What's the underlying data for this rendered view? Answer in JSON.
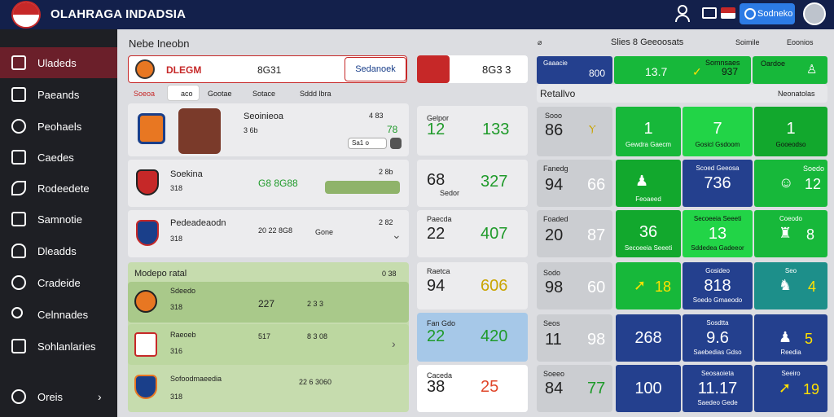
{
  "app": {
    "title": "OLAHRAGA INDADSIA",
    "action_button": "Sodneko"
  },
  "sidebar": {
    "items": [
      {
        "label": "Uladeds"
      },
      {
        "label": "Paeands"
      },
      {
        "label": "Peohaels"
      },
      {
        "label": "Caedes"
      },
      {
        "label": "Rodeedete"
      },
      {
        "label": "Samnotie"
      },
      {
        "label": "Dleadds"
      },
      {
        "label": "Cradeide"
      },
      {
        "label": "Celnnades"
      },
      {
        "label": "Sohlanlaries"
      }
    ],
    "footer": "Oreis"
  },
  "main": {
    "heading": "Nebe Ineobn",
    "match_bar": {
      "team": "DLEGM",
      "score": "8G31",
      "button": "Sedanoek"
    },
    "tabs": [
      "Soeoa",
      "aco",
      "Gootae",
      "Sotace",
      "Sddd lbra"
    ],
    "rows": [
      {
        "name": "Seoinieoa",
        "meta": "3 6b",
        "tag": "Sa1 o",
        "value": "78",
        "count": "4 83"
      },
      {
        "name": "Soekina",
        "meta": "318",
        "value": "G8 8G88",
        "count": "2 8b"
      },
      {
        "name": "Pedeadeaodn",
        "meta": "318",
        "value": "20 22 8G8",
        "tag": "Gone",
        "count": "2 82"
      }
    ],
    "group": {
      "title": "Modepo ratal",
      "count": "0 38",
      "rows": [
        {
          "name": "Sdeedo",
          "meta": "318",
          "value": "227",
          "tag": "2 3 3"
        },
        {
          "name": "Raeoeb",
          "meta": "316",
          "value": "517",
          "tag": "8 3 08"
        },
        {
          "name": "Sofoodmaeedia",
          "meta": "318",
          "value": "22 6 3060"
        }
      ]
    }
  },
  "scores": {
    "top": {
      "value": "8G3 3"
    },
    "cells": [
      {
        "left": "12",
        "right": "133",
        "label": "Gelpor"
      },
      {
        "left": "68",
        "right": "327",
        "label": "Sedor"
      },
      {
        "left": "22",
        "right": "407",
        "label": "Paecda"
      },
      {
        "left": "94",
        "right": "606",
        "label": "Raetca"
      },
      {
        "left": "22",
        "right": "420",
        "label": "Fan Gdo"
      },
      {
        "left": "38",
        "right": "25",
        "label": "Caceda"
      }
    ]
  },
  "right": {
    "header": {
      "title": "Slies 8 Geeoosats",
      "a": "Soimile",
      "b": "Eoonios"
    },
    "stats": [
      {
        "label": "Gaaacie",
        "value": "800"
      },
      {
        "label": "13.7"
      },
      {
        "label": "Somnsaes",
        "value": "937"
      },
      {
        "label": "Oardoe"
      }
    ],
    "section": "Retallvo",
    "section_right": "Neonatolas",
    "rows": [
      {
        "left": "86",
        "mid": "1",
        "mid2": "7",
        "right": "1",
        "lt": "Sooo",
        "mt": "Gewdra Gaecm",
        "mt2": "Gosicl Gsdoom",
        "rt": "Gooeodso"
      },
      {
        "left": "94",
        "l2": "66",
        "mid": "",
        "mid2": "736",
        "right": "12",
        "lt": "Fanedg",
        "mt": "Feoaeed",
        "mt2": "Scoed Geeosa",
        "rt": "Soedo"
      },
      {
        "left": "20",
        "l2": "87",
        "mid": "36",
        "mid2": "13",
        "right": "8",
        "lt": "Foaded",
        "mt": "Secoeeia Seeeti",
        "mt2": "Sddedea Gadeeor",
        "rt": "Coeodo"
      },
      {
        "left": "98",
        "l2": "60",
        "mid": "18",
        "mid2": "818",
        "right": "4",
        "lt": "Sodo",
        "mt": "Gosideo",
        "mt2": "Soedo Gmaeodo",
        "rt": "Seo"
      },
      {
        "left": "11",
        "l2": "98",
        "mid": "268",
        "mid2": "9.6",
        "right": "5",
        "lt": "Seos",
        "mt": "Sosdtta",
        "mt2": "Saebedias Gdso",
        "rt": "Reedia"
      },
      {
        "left": "84",
        "l2": "77",
        "mid": "100",
        "mid2": "11.17",
        "right": "19",
        "lt": "Soeeo",
        "mt": "Seosaoieta",
        "mt2": "Saedeo Gede",
        "rt": "Seeiro"
      }
    ]
  },
  "colors": {
    "navy": "#13204b",
    "green": "#17b83a",
    "blue": "#24408e",
    "red": "#c62828"
  }
}
